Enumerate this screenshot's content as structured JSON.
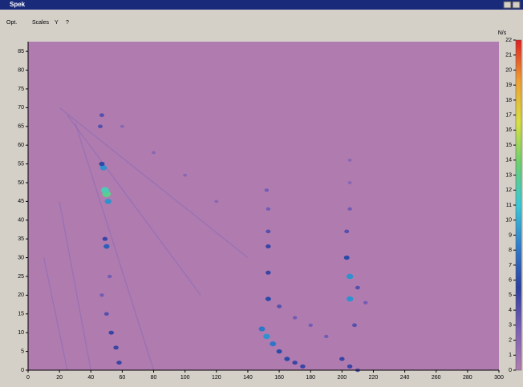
{
  "window": {
    "title": "Spek",
    "menu": [
      "Opt.",
      "Scales",
      "Y",
      "?"
    ]
  },
  "chart_data": {
    "type": "scatter",
    "x": [
      58,
      56,
      53,
      50,
      47,
      48,
      47,
      50,
      49,
      51,
      50,
      49,
      46,
      47,
      52,
      60,
      80,
      100,
      120,
      149,
      152,
      156,
      160,
      165,
      170,
      175,
      153,
      160,
      170,
      180,
      190,
      153,
      153,
      153,
      153,
      152,
      200,
      205,
      210,
      205,
      205,
      203,
      210,
      215,
      203,
      205,
      205,
      205,
      208
    ],
    "y": [
      2,
      6,
      10,
      15,
      20,
      54,
      55,
      47,
      48,
      45,
      33,
      35,
      65,
      68,
      25,
      65,
      58,
      52,
      45,
      11,
      9,
      7,
      5,
      3,
      2,
      1,
      19,
      17,
      14,
      12,
      9,
      26,
      33,
      37,
      43,
      48,
      3,
      1,
      0,
      25,
      19,
      30,
      22,
      18,
      37,
      43,
      50,
      56,
      12
    ],
    "values": [
      5,
      5,
      5,
      4,
      3,
      9,
      6,
      13,
      12,
      9,
      7,
      5,
      4,
      4,
      3,
      2,
      2,
      2,
      2,
      8,
      9,
      8,
      6,
      6,
      5,
      5,
      6,
      4,
      3,
      3,
      3,
      5,
      5,
      4,
      3,
      3,
      5,
      5,
      4,
      9,
      9,
      6,
      4,
      3,
      4,
      3,
      2,
      2,
      4
    ],
    "xlim": [
      0,
      300
    ],
    "xticks": [
      0,
      20,
      40,
      60,
      80,
      100,
      120,
      140,
      160,
      180,
      200,
      220,
      240,
      260,
      280,
      300
    ],
    "ylim": [
      0,
      87.6
    ],
    "yticks": [
      0,
      5,
      10,
      15,
      20,
      25,
      30,
      35,
      40,
      45,
      50,
      55,
      60,
      65,
      70,
      75,
      80,
      85
    ],
    "clim": [
      0,
      22
    ],
    "cticks": [
      0,
      1,
      2,
      3,
      4,
      5,
      6,
      7,
      8,
      9,
      10,
      11,
      12,
      13,
      14,
      15,
      16,
      17,
      18,
      19,
      20,
      21,
      22
    ],
    "clabel": "N/s",
    "colorscale": [
      "#b07cb0",
      "#7a5fb4",
      "#2a3fa0",
      "#2f7ccc",
      "#38c8d8",
      "#6ad070",
      "#d8e040",
      "#f0a030",
      "#e02020"
    ]
  }
}
